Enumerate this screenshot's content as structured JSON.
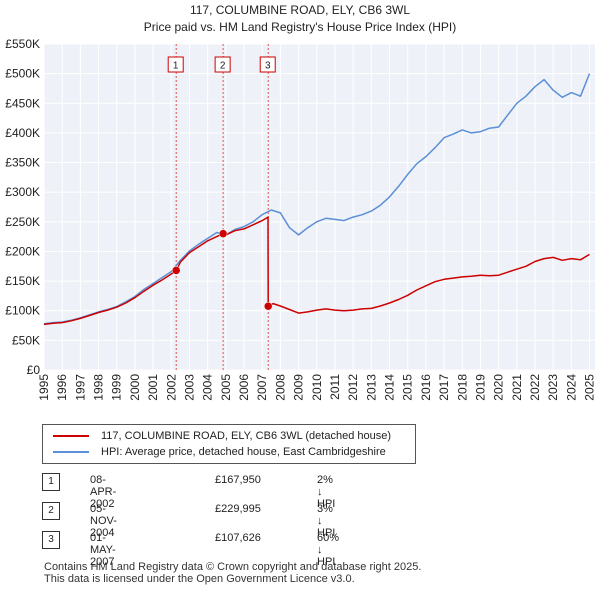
{
  "chart_data": {
    "type": "line",
    "title": "117, COLUMBINE ROAD, ELY, CB6 3WL",
    "subtitle": "Price paid vs. HM Land Registry's House Price Index (HPI)",
    "xlim": [
      1995,
      2025.3
    ],
    "ylim": [
      0,
      550000
    ],
    "y_ticks": [
      {
        "value": 0,
        "label": "£0"
      },
      {
        "value": 50000,
        "label": "£50K"
      },
      {
        "value": 100000,
        "label": "£100K"
      },
      {
        "value": 150000,
        "label": "£150K"
      },
      {
        "value": 200000,
        "label": "£200K"
      },
      {
        "value": 250000,
        "label": "£250K"
      },
      {
        "value": 300000,
        "label": "£300K"
      },
      {
        "value": 350000,
        "label": "£350K"
      },
      {
        "value": 400000,
        "label": "£400K"
      },
      {
        "value": 450000,
        "label": "£450K"
      },
      {
        "value": 500000,
        "label": "£500K"
      },
      {
        "value": 550000,
        "label": "£550K"
      }
    ],
    "x_ticks": [
      {
        "value": 1995,
        "label": "1995"
      },
      {
        "value": 1996,
        "label": "1996"
      },
      {
        "value": 1997,
        "label": "1997"
      },
      {
        "value": 1998,
        "label": "1998"
      },
      {
        "value": 1999,
        "label": "1999"
      },
      {
        "value": 2000,
        "label": "2000"
      },
      {
        "value": 2001,
        "label": "2001"
      },
      {
        "value": 2002,
        "label": "2002"
      },
      {
        "value": 2003,
        "label": "2003"
      },
      {
        "value": 2004,
        "label": "2004"
      },
      {
        "value": 2005,
        "label": "2005"
      },
      {
        "value": 2006,
        "label": "2006"
      },
      {
        "value": 2007,
        "label": "2007"
      },
      {
        "value": 2008,
        "label": "2008"
      },
      {
        "value": 2009,
        "label": "2009"
      },
      {
        "value": 2010,
        "label": "2010"
      },
      {
        "value": 2011,
        "label": "2011"
      },
      {
        "value": 2012,
        "label": "2012"
      },
      {
        "value": 2013,
        "label": "2013"
      },
      {
        "value": 2014,
        "label": "2014"
      },
      {
        "value": 2015,
        "label": "2015"
      },
      {
        "value": 2016,
        "label": "2016"
      },
      {
        "value": 2017,
        "label": "2017"
      },
      {
        "value": 2018,
        "label": "2018"
      },
      {
        "value": 2019,
        "label": "2019"
      },
      {
        "value": 2020,
        "label": "2020"
      },
      {
        "value": 2021,
        "label": "2021"
      },
      {
        "value": 2022,
        "label": "2022"
      },
      {
        "value": 2023,
        "label": "2023"
      },
      {
        "value": 2024,
        "label": "2024"
      },
      {
        "value": 2025,
        "label": "2025"
      }
    ],
    "grid": true,
    "sale_markers": [
      {
        "label": "1",
        "x": 2002.27,
        "y": 167950
      },
      {
        "label": "2",
        "x": 2004.85,
        "y": 229995
      },
      {
        "label": "3",
        "x": 2007.33,
        "y": 107626
      }
    ],
    "series": [
      {
        "name": "117, COLUMBINE ROAD, ELY, CB6 3WL (detached house)",
        "color": "#cc0000",
        "x": [
          1995.0,
          1995.5,
          1996.0,
          1996.5,
          1997.0,
          1997.5,
          1998.0,
          1998.5,
          1999.0,
          1999.5,
          2000.0,
          2000.5,
          2001.0,
          2001.5,
          2002.0,
          2002.27,
          2002.5,
          2003.0,
          2003.5,
          2004.0,
          2004.5,
          2004.85,
          2005.0,
          2005.5,
          2006.0,
          2006.5,
          2007.0,
          2007.32,
          2007.33,
          2007.6,
          2008.0,
          2008.5,
          2009.0,
          2009.5,
          2010.0,
          2010.5,
          2011.0,
          2011.5,
          2012.0,
          2012.5,
          2013.0,
          2013.5,
          2014.0,
          2014.5,
          2015.0,
          2015.5,
          2016.0,
          2016.5,
          2017.0,
          2017.5,
          2018.0,
          2018.5,
          2019.0,
          2019.5,
          2020.0,
          2020.5,
          2021.0,
          2021.5,
          2022.0,
          2022.5,
          2023.0,
          2023.5,
          2024.0,
          2024.5,
          2025.0
        ],
        "y": [
          77000,
          79000,
          80000,
          83000,
          87000,
          92000,
          97000,
          101000,
          106000,
          113000,
          122000,
          133000,
          143000,
          152000,
          162000,
          167950,
          182000,
          198000,
          208000,
          218000,
          225000,
          229995,
          228000,
          235000,
          238000,
          245000,
          252000,
          258000,
          107626,
          112000,
          108000,
          102000,
          96000,
          98000,
          101000,
          103000,
          101000,
          100000,
          101000,
          103000,
          104000,
          108000,
          113000,
          119000,
          126000,
          135000,
          142000,
          149000,
          153000,
          155000,
          157000,
          158000,
          160000,
          159000,
          160000,
          165000,
          170000,
          175000,
          183000,
          188000,
          190000,
          185000,
          188000,
          186000,
          195000
        ]
      },
      {
        "name": "HPI: Average price, detached house, East Cambridgeshire",
        "color": "#5b8fd6",
        "x": [
          1995.0,
          1995.5,
          1996.0,
          1996.5,
          1997.0,
          1997.5,
          1998.0,
          1998.5,
          1999.0,
          1999.5,
          2000.0,
          2000.5,
          2001.0,
          2001.5,
          2002.0,
          2002.5,
          2003.0,
          2003.5,
          2004.0,
          2004.5,
          2005.0,
          2005.5,
          2006.0,
          2006.5,
          2007.0,
          2007.5,
          2008.0,
          2008.5,
          2009.0,
          2009.5,
          2010.0,
          2010.5,
          2011.0,
          2011.5,
          2012.0,
          2012.5,
          2013.0,
          2013.5,
          2014.0,
          2014.5,
          2015.0,
          2015.5,
          2016.0,
          2016.5,
          2017.0,
          2017.5,
          2018.0,
          2018.5,
          2019.0,
          2019.5,
          2020.0,
          2020.5,
          2021.0,
          2021.5,
          2022.0,
          2022.5,
          2023.0,
          2023.5,
          2024.0,
          2024.5,
          2025.0
        ],
        "y": [
          78000,
          80000,
          81000,
          84000,
          88000,
          93000,
          98000,
          102000,
          107000,
          115000,
          124000,
          136000,
          146000,
          156000,
          166000,
          185000,
          201000,
          212000,
          222000,
          232000,
          228000,
          237000,
          242000,
          250000,
          262000,
          270000,
          265000,
          240000,
          228000,
          240000,
          250000,
          256000,
          254000,
          252000,
          258000,
          262000,
          268000,
          278000,
          292000,
          310000,
          330000,
          348000,
          360000,
          375000,
          392000,
          398000,
          405000,
          400000,
          402000,
          408000,
          410000,
          430000,
          450000,
          462000,
          478000,
          490000,
          472000,
          460000,
          468000,
          462000,
          500000
        ]
      }
    ]
  },
  "legend": {
    "property_label": "117, COLUMBINE ROAD, ELY, CB6 3WL (detached house)",
    "hpi_label": "HPI: Average price, detached house, East Cambridgeshire",
    "property_color": "#cc0000",
    "hpi_color": "#5b8fd6"
  },
  "transactions": [
    {
      "num": "1",
      "date": "08-APR-2002",
      "price": "£167,950",
      "hpi_change": "2% ↓ HPI"
    },
    {
      "num": "2",
      "date": "05-NOV-2004",
      "price": "£229,995",
      "hpi_change": "3% ↓ HPI"
    },
    {
      "num": "3",
      "date": "01-MAY-2007",
      "price": "£107,626",
      "hpi_change": "60% ↓ HPI"
    }
  ],
  "footer": {
    "line1": "Contains HM Land Registry data © Crown copyright and database right 2025.",
    "line2": "This data is licensed under the Open Government Licence v3.0."
  }
}
